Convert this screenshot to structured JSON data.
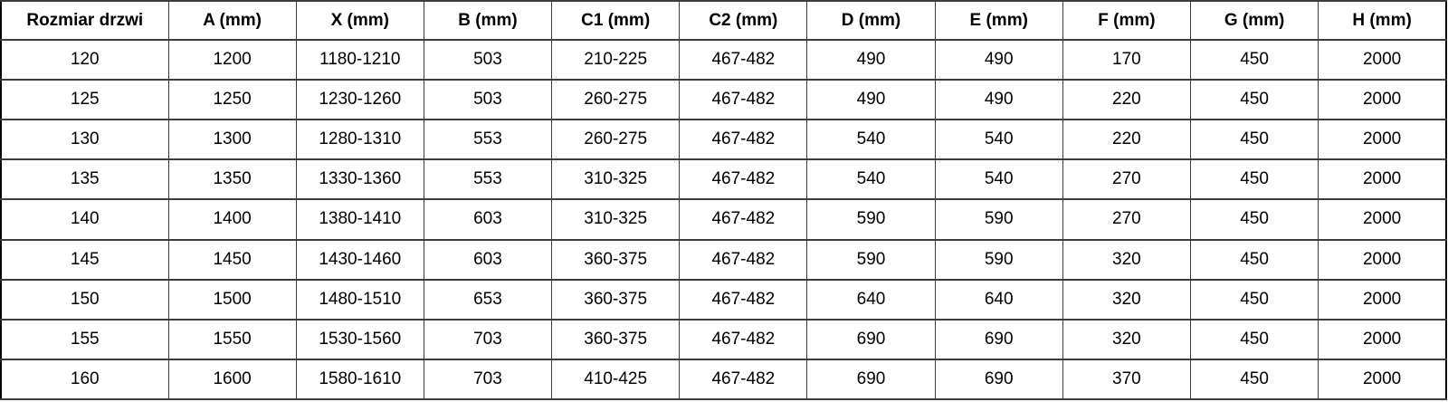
{
  "table": {
    "columns": [
      "Rozmiar drzwi",
      "A (mm)",
      "X (mm)",
      "B (mm)",
      "C1 (mm)",
      "C2 (mm)",
      "D (mm)",
      "E (mm)",
      "F (mm)",
      "G (mm)",
      "H (mm)"
    ],
    "rows": [
      [
        "120",
        "1200",
        "1180-1210",
        "503",
        "210-225",
        "467-482",
        "490",
        "490",
        "170",
        "450",
        "2000"
      ],
      [
        "125",
        "1250",
        "1230-1260",
        "503",
        "260-275",
        "467-482",
        "490",
        "490",
        "220",
        "450",
        "2000"
      ],
      [
        "130",
        "1300",
        "1280-1310",
        "553",
        "260-275",
        "467-482",
        "540",
        "540",
        "220",
        "450",
        "2000"
      ],
      [
        "135",
        "1350",
        "1330-1360",
        "553",
        "310-325",
        "467-482",
        "540",
        "540",
        "270",
        "450",
        "2000"
      ],
      [
        "140",
        "1400",
        "1380-1410",
        "603",
        "310-325",
        "467-482",
        "590",
        "590",
        "270",
        "450",
        "2000"
      ],
      [
        "145",
        "1450",
        "1430-1460",
        "603",
        "360-375",
        "467-482",
        "590",
        "590",
        "320",
        "450",
        "2000"
      ],
      [
        "150",
        "1500",
        "1480-1510",
        "653",
        "360-375",
        "467-482",
        "640",
        "640",
        "320",
        "450",
        "2000"
      ],
      [
        "155",
        "1550",
        "1530-1560",
        "703",
        "360-375",
        "467-482",
        "690",
        "690",
        "320",
        "450",
        "2000"
      ],
      [
        "160",
        "1600",
        "1580-1610",
        "703",
        "410-425",
        "467-482",
        "690",
        "690",
        "370",
        "450",
        "2000"
      ]
    ]
  },
  "colors": {
    "border": "#3c3c3c",
    "outer_border": "#000000",
    "text": "#000000",
    "background": "#ffffff"
  }
}
